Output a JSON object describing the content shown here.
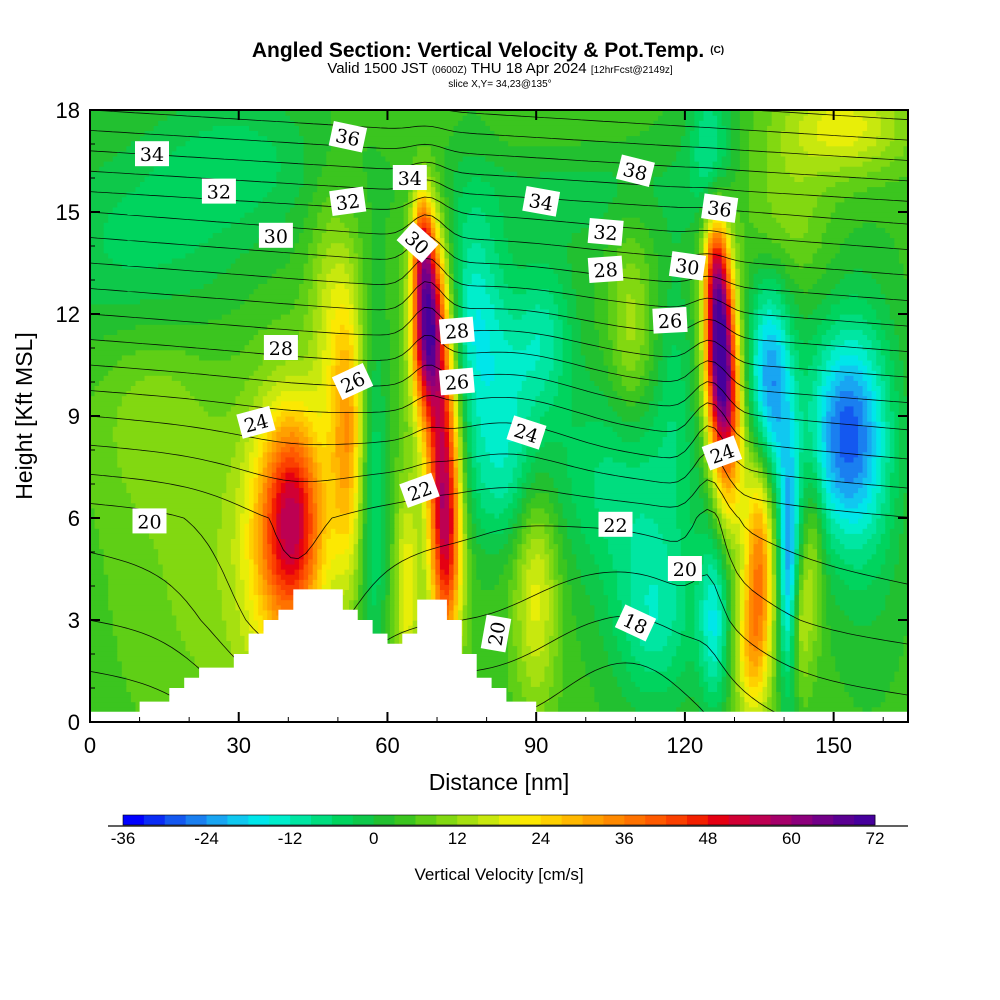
{
  "chart_data": {
    "type": "heatmap",
    "title": "Angled Section: Vertical Velocity & Pot.Temp.",
    "title_mark": "(C)",
    "subtitle": {
      "valid": "Valid 1500 JST",
      "zulu": "(0600Z)",
      "date": "THU 18 Apr 2024",
      "fcst": "[12hrFcst@2149z]"
    },
    "slice": "slice X,Y= 34,23@135°",
    "xlabel": "Distance [nm]",
    "ylabel": "Height [Kft MSL]",
    "xlim": [
      0,
      165
    ],
    "ylim": [
      0,
      18
    ],
    "x_ticks": [
      0,
      30,
      60,
      90,
      120,
      150
    ],
    "y_ticks": [
      0,
      3,
      6,
      9,
      12,
      15,
      18
    ],
    "colorbar": {
      "label": "Vertical Velocity [cm/s]",
      "ticks": [
        -36,
        -24,
        -12,
        0,
        12,
        24,
        36,
        48,
        60,
        72
      ],
      "range": [
        -36,
        72
      ],
      "step": 3,
      "colors": [
        "#0000ff",
        "#0a2cf5",
        "#1458f0",
        "#1a7ff0",
        "#19a5f2",
        "#10c8f0",
        "#00e6ea",
        "#00eecc",
        "#00e6a2",
        "#00dd7f",
        "#00d45e",
        "#0ec84a",
        "#22c030",
        "#3bc51f",
        "#5fcf16",
        "#82d811",
        "#a6e010",
        "#c8e80e",
        "#e8ee08",
        "#fce802",
        "#fed000",
        "#ffb800",
        "#ffa000",
        "#ff8900",
        "#ff7200",
        "#ff5a00",
        "#fb4000",
        "#f32000",
        "#e50012",
        "#d10034",
        "#bd0052",
        "#a5006a",
        "#8c007c",
        "#720088",
        "#5a0092",
        "#46009c"
      ]
    },
    "fields": {
      "vertical_velocity_cm_s": {
        "background": 4,
        "features": [
          {
            "x": 25,
            "y": 4.2,
            "sx": 14,
            "sy": 4.0,
            "w": 6
          },
          {
            "x": 41,
            "y": 6.0,
            "sx": 4.5,
            "sy": 2.2,
            "w": 38
          },
          {
            "x": 38,
            "y": 5.0,
            "sx": 6,
            "sy": 3.2,
            "w": 14
          },
          {
            "x": 52,
            "y": 8.5,
            "sx": 2.5,
            "sy": 3.0,
            "w": 26
          },
          {
            "x": 48,
            "y": 12,
            "sx": 3,
            "sy": 2.5,
            "w": 10
          },
          {
            "x": 57,
            "y": 6.5,
            "sx": 2.0,
            "sy": 3.5,
            "w": -12
          },
          {
            "x": 68,
            "y": 11.8,
            "sx": 2.2,
            "sy": 1.9,
            "w": 60
          },
          {
            "x": 67,
            "y": 14.3,
            "sx": 1.5,
            "sy": 1.1,
            "w": 24
          },
          {
            "x": 71,
            "y": 8.5,
            "sx": 2.4,
            "sy": 3.0,
            "w": 38
          },
          {
            "x": 72,
            "y": 5.0,
            "sx": 2.2,
            "sy": 2.5,
            "w": 32
          },
          {
            "x": 64,
            "y": 4.0,
            "sx": 1.8,
            "sy": 2.4,
            "w": 16
          },
          {
            "x": 77,
            "y": 12.0,
            "sx": 4.5,
            "sy": 2.5,
            "w": -16
          },
          {
            "x": 85,
            "y": 10.0,
            "sx": 6,
            "sy": 2.0,
            "w": -12
          },
          {
            "x": 83,
            "y": 7.0,
            "sx": 6,
            "sy": 1.5,
            "w": -10
          },
          {
            "x": 90,
            "y": 4.0,
            "sx": 3.2,
            "sy": 2.5,
            "w": 16
          },
          {
            "x": 92,
            "y": 11.5,
            "sx": 4,
            "sy": 1.5,
            "w": -10
          },
          {
            "x": 108,
            "y": 7.0,
            "sx": 10,
            "sy": 2.2,
            "w": -12
          },
          {
            "x": 114,
            "y": 3.0,
            "sx": 6,
            "sy": 1.8,
            "w": -14
          },
          {
            "x": 109,
            "y": 11.5,
            "sx": 3,
            "sy": 2.2,
            "w": 10
          },
          {
            "x": 118,
            "y": 10.5,
            "sx": 2.5,
            "sy": 2.5,
            "w": -6
          },
          {
            "x": 127,
            "y": 11.0,
            "sx": 2.0,
            "sy": 2.0,
            "w": 62
          },
          {
            "x": 126,
            "y": 13.5,
            "sx": 1.7,
            "sy": 1.2,
            "w": 24
          },
          {
            "x": 129,
            "y": 8.5,
            "sx": 2.2,
            "sy": 2.2,
            "w": 30
          },
          {
            "x": 135,
            "y": 5.0,
            "sx": 2.2,
            "sy": 2.5,
            "w": 32
          },
          {
            "x": 133,
            "y": 2.0,
            "sx": 2.5,
            "sy": 1.5,
            "w": 16
          },
          {
            "x": 137,
            "y": 9.8,
            "sx": 3.2,
            "sy": 2.2,
            "w": -30
          },
          {
            "x": 141,
            "y": 4.5,
            "sx": 1.5,
            "sy": 2.5,
            "w": -28
          },
          {
            "x": 126,
            "y": 3.0,
            "sx": 2.2,
            "sy": 1.8,
            "w": -18
          },
          {
            "x": 152,
            "y": 8.5,
            "sx": 5.5,
            "sy": 2.2,
            "w": -28
          },
          {
            "x": 157,
            "y": 7.5,
            "sx": 5,
            "sy": 3.5,
            "w": -8
          },
          {
            "x": 146,
            "y": 5.0,
            "sx": 1.5,
            "sy": 2.0,
            "w": 10
          },
          {
            "x": 143,
            "y": 3.0,
            "sx": 1.5,
            "sy": 1.5,
            "w": 14
          },
          {
            "x": 125,
            "y": 17.0,
            "sx": 3,
            "sy": 1.5,
            "w": -12
          },
          {
            "x": 152,
            "y": 17.5,
            "sx": 9,
            "sy": 1.0,
            "w": 16
          },
          {
            "x": 140,
            "y": 15.0,
            "sx": 6,
            "sy": 1.5,
            "w": 8
          },
          {
            "x": 10,
            "y": 14.0,
            "sx": 15,
            "sy": 2.0,
            "w": -8
          },
          {
            "x": 12,
            "y": 9.0,
            "sx": 8,
            "sy": 2.0,
            "w": 6
          },
          {
            "x": 30,
            "y": 16.5,
            "sx": 12,
            "sy": 1.5,
            "w": -8
          },
          {
            "x": 100,
            "y": 16.0,
            "sx": 20,
            "sy": 1.5,
            "w": -6
          },
          {
            "x": 95,
            "y": 17.2,
            "sx": 15,
            "sy": 0.8,
            "w": 4
          }
        ]
      },
      "potential_temperature_C": {
        "contour_interval": 1,
        "profile_levels": [
          [
            0,
            17
          ],
          [
            3,
            19
          ],
          [
            6,
            20.5
          ],
          [
            9,
            24
          ],
          [
            12,
            28
          ],
          [
            15,
            32
          ],
          [
            18,
            37
          ]
        ],
        "horizontal_gradient_per_nm": 0.015,
        "features": [
          {
            "x": 40,
            "y": 2.5,
            "sx": 12,
            "sy": 3.0,
            "t": 2.0
          },
          {
            "x": 110,
            "y": 2.0,
            "sx": 15,
            "sy": 3.0,
            "t": -1.8
          },
          {
            "x": 85,
            "y": 9.0,
            "sx": 12,
            "sy": 2.5,
            "t": -1.0
          },
          {
            "x": 125,
            "y": 8.0,
            "sx": 3,
            "sy": 3.0,
            "t": -1.5
          },
          {
            "x": 68,
            "y": 13.0,
            "sx": 3,
            "sy": 2.5,
            "t": -1.2
          }
        ]
      }
    },
    "terrain": [
      [
        0,
        0.3
      ],
      [
        10,
        0.3
      ],
      [
        10,
        0.6
      ],
      [
        16,
        0.6
      ],
      [
        16,
        1.0
      ],
      [
        19,
        1.0
      ],
      [
        19,
        1.3
      ],
      [
        22,
        1.3
      ],
      [
        22,
        1.6
      ],
      [
        29,
        1.6
      ],
      [
        29,
        2.0
      ],
      [
        32,
        2.0
      ],
      [
        32,
        2.6
      ],
      [
        35,
        2.6
      ],
      [
        35,
        3.0
      ],
      [
        38,
        3.0
      ],
      [
        38,
        3.3
      ],
      [
        41,
        3.3
      ],
      [
        41,
        3.9
      ],
      [
        51,
        3.9
      ],
      [
        51,
        3.3
      ],
      [
        54,
        3.3
      ],
      [
        54,
        3.0
      ],
      [
        57,
        3.0
      ],
      [
        57,
        2.6
      ],
      [
        60,
        2.6
      ],
      [
        60,
        2.3
      ],
      [
        63,
        2.3
      ],
      [
        63,
        2.6
      ],
      [
        66,
        2.6
      ],
      [
        66,
        3.6
      ],
      [
        72,
        3.6
      ],
      [
        72,
        3.0
      ],
      [
        75,
        3.0
      ],
      [
        75,
        2.0
      ],
      [
        78,
        2.0
      ],
      [
        78,
        1.3
      ],
      [
        81,
        1.3
      ],
      [
        81,
        1.0
      ],
      [
        84,
        1.0
      ],
      [
        84,
        0.6
      ],
      [
        90,
        0.6
      ],
      [
        90,
        0.3
      ],
      [
        165,
        0.3
      ]
    ],
    "contour_labels": [
      {
        "text": "34",
        "x": 12.5,
        "y": 16.7,
        "angle": 0
      },
      {
        "text": "36",
        "x": 52,
        "y": 17.2,
        "angle": 12
      },
      {
        "text": "32",
        "x": 26,
        "y": 15.6,
        "angle": 0
      },
      {
        "text": "32",
        "x": 52,
        "y": 15.3,
        "angle": -8
      },
      {
        "text": "34",
        "x": 64.5,
        "y": 16.0,
        "angle": 0
      },
      {
        "text": "38",
        "x": 110,
        "y": 16.2,
        "angle": 14
      },
      {
        "text": "34",
        "x": 91,
        "y": 15.3,
        "angle": 10
      },
      {
        "text": "36",
        "x": 127,
        "y": 15.1,
        "angle": 8
      },
      {
        "text": "30",
        "x": 37.5,
        "y": 14.3,
        "angle": 0
      },
      {
        "text": "30",
        "x": 66,
        "y": 14.1,
        "angle": 42
      },
      {
        "text": "32",
        "x": 104,
        "y": 14.4,
        "angle": 5
      },
      {
        "text": "30",
        "x": 120.5,
        "y": 13.4,
        "angle": 8
      },
      {
        "text": "28",
        "x": 104,
        "y": 13.3,
        "angle": -4
      },
      {
        "text": "26",
        "x": 117,
        "y": 11.8,
        "angle": -3
      },
      {
        "text": "28",
        "x": 38.5,
        "y": 11.0,
        "angle": 0
      },
      {
        "text": "28",
        "x": 74,
        "y": 11.5,
        "angle": -5
      },
      {
        "text": "26",
        "x": 53,
        "y": 10.0,
        "angle": -25
      },
      {
        "text": "26",
        "x": 74,
        "y": 10.0,
        "angle": -5
      },
      {
        "text": "24",
        "x": 33.5,
        "y": 8.8,
        "angle": -15
      },
      {
        "text": "24",
        "x": 88,
        "y": 8.5,
        "angle": 18
      },
      {
        "text": "24",
        "x": 127.5,
        "y": 7.9,
        "angle": -20
      },
      {
        "text": "22",
        "x": 66.5,
        "y": 6.8,
        "angle": -20
      },
      {
        "text": "20",
        "x": 12,
        "y": 5.9,
        "angle": 0
      },
      {
        "text": "22",
        "x": 106,
        "y": 5.8,
        "angle": 0
      },
      {
        "text": "20",
        "x": 120,
        "y": 4.5,
        "angle": 0
      },
      {
        "text": "18",
        "x": 110,
        "y": 2.9,
        "angle": 25
      },
      {
        "text": "20",
        "x": 82,
        "y": 2.6,
        "angle": -80
      }
    ]
  }
}
